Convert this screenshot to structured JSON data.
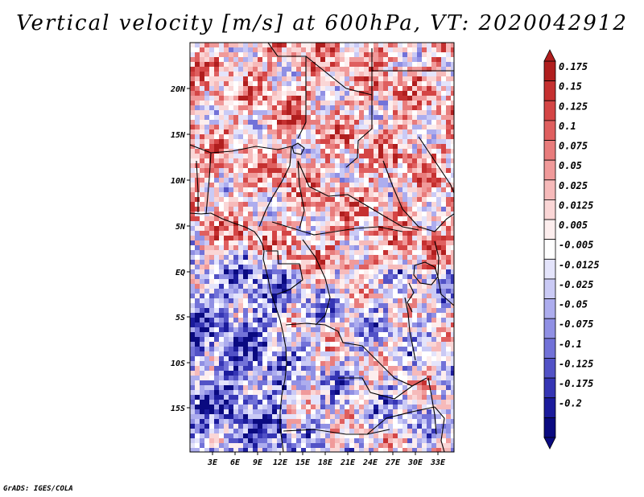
{
  "title": "Vertical velocity [m/s] at 600hPa, VT: 2020042912",
  "credit": "GrADS: IGES/COLA",
  "map": {
    "lat_labels": [
      "20N",
      "15N",
      "10N",
      "5N",
      "EQ",
      "5S",
      "10S",
      "15S"
    ],
    "lon_labels": [
      "3E",
      "6E",
      "9E",
      "12E",
      "15E",
      "18E",
      "21E",
      "24E",
      "27E",
      "30E",
      "33E"
    ]
  },
  "colorbar": {
    "labels": [
      "0.175",
      "0.15",
      "0.125",
      "0.1",
      "0.075",
      "0.05",
      "0.025",
      "0.0125",
      "0.005",
      "-0.005",
      "-0.0125",
      "-0.025",
      "-0.05",
      "-0.075",
      "-0.1",
      "-0.125",
      "-0.175",
      "-0.2"
    ],
    "colors": [
      "#b01e1e",
      "#c53030",
      "#d44545",
      "#df5f5f",
      "#e87c7c",
      "#f09a9a",
      "#f6baba",
      "#fad6d6",
      "#fdeeee",
      "#ffffff",
      "#e4e4fb",
      "#cacaf5",
      "#adadee",
      "#9090e4",
      "#7272d8",
      "#5252c6",
      "#3535b4",
      "#1b1b9c",
      "#0a0a80"
    ]
  },
  "colors": {
    "land_outline": "#000000",
    "frame": "#000000"
  }
}
